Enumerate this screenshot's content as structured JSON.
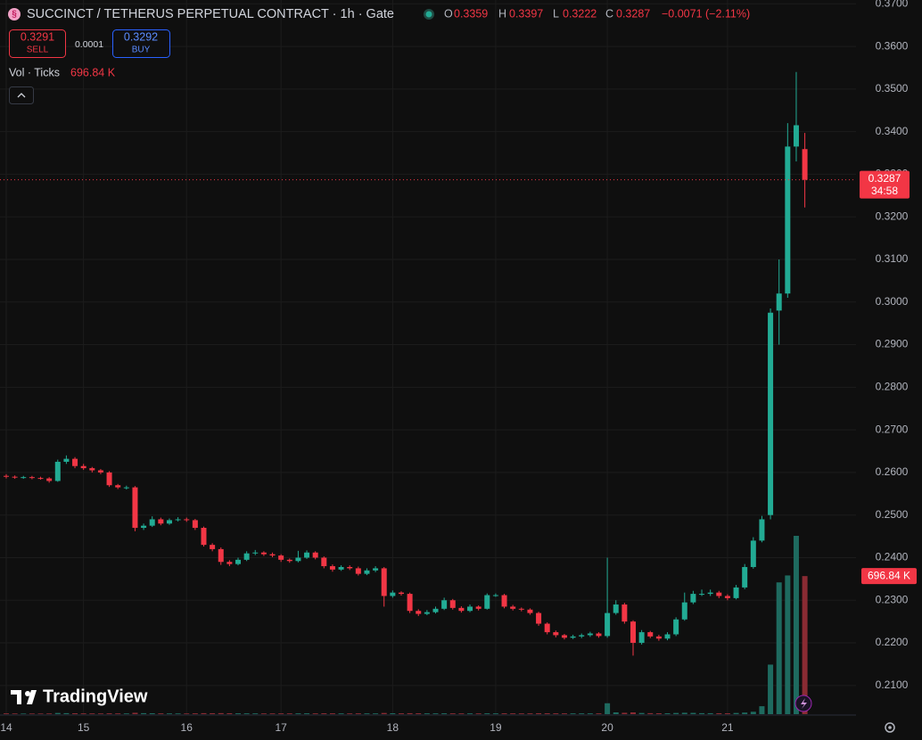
{
  "chart_data": {
    "type": "candlestick",
    "title": "SUCCINCT / TETHERUS PERPETUAL CONTRACT · 1h · Gate",
    "header": {
      "o": "O",
      "h": "H",
      "l": "L",
      "c": "C",
      "change": "−0.0071 (−2.11%)",
      "sell_price": 0.3291,
      "sell": "SELL",
      "spread": 0.0001,
      "buy_price": 0.3292,
      "buy": "BUY",
      "countdown": "34:58",
      "logo": "TradingView"
    },
    "up_color": "#22ab94",
    "down_color": "#f23645",
    "volume_up_color": "#1e6a5f",
    "volume_down_color": "#8a2b33",
    "categories": [
      "14",
      null,
      null,
      null,
      null,
      null,
      null,
      null,
      null,
      "15",
      null,
      null,
      null,
      null,
      null,
      null,
      null,
      null,
      null,
      null,
      null,
      "16",
      null,
      null,
      null,
      null,
      null,
      null,
      null,
      null,
      null,
      null,
      "17",
      null,
      null,
      null,
      null,
      null,
      null,
      null,
      null,
      null,
      null,
      null,
      null,
      "18",
      null,
      null,
      null,
      null,
      null,
      null,
      null,
      null,
      null,
      null,
      null,
      "19",
      null,
      null,
      null,
      null,
      null,
      null,
      null,
      null,
      null,
      null,
      null,
      null,
      "20",
      null,
      null,
      null,
      null,
      null,
      null,
      null,
      null,
      null,
      null,
      null,
      null,
      null,
      "21",
      null,
      null,
      null,
      null,
      null,
      null,
      null,
      null,
      null
    ],
    "open": [
      0.2592,
      0.259,
      0.2588,
      0.2589,
      0.2587,
      0.2586,
      0.258,
      0.2625,
      0.2632,
      0.2615,
      0.261,
      0.2605,
      0.26,
      0.257,
      0.2565,
      0.2565,
      0.247,
      0.2475,
      0.249,
      0.248,
      0.2488,
      0.249,
      0.2488,
      0.247,
      0.243,
      0.242,
      0.239,
      0.2385,
      0.2395,
      0.241,
      0.2412,
      0.2408,
      0.2405,
      0.2395,
      0.2392,
      0.24,
      0.2412,
      0.24,
      0.238,
      0.2372,
      0.2378,
      0.2375,
      0.2362,
      0.237,
      0.2375,
      0.231,
      0.2318,
      0.2315,
      0.2275,
      0.2268,
      0.2272,
      0.228,
      0.23,
      0.2282,
      0.2275,
      0.2285,
      0.228,
      0.2312,
      0.2312,
      0.2285,
      0.228,
      0.2278,
      0.227,
      0.2245,
      0.2225,
      0.2218,
      0.2212,
      0.2215,
      0.2218,
      0.2222,
      0.2216,
      0.227,
      0.229,
      0.225,
      0.22,
      0.2225,
      0.2215,
      0.221,
      0.222,
      0.2255,
      0.2295,
      0.2315,
      0.2315,
      0.2318,
      0.231,
      0.2305,
      0.233,
      0.2378,
      0.244,
      0.25,
      0.298,
      0.302,
      0.3365,
      0.3359
    ],
    "high": [
      0.2596,
      0.2593,
      0.2592,
      0.2592,
      0.259,
      0.2589,
      0.263,
      0.264,
      0.2636,
      0.262,
      0.2613,
      0.2608,
      0.2603,
      0.2573,
      0.2569,
      0.2568,
      0.248,
      0.2497,
      0.2494,
      0.2492,
      0.2495,
      0.2494,
      0.2491,
      0.2473,
      0.2434,
      0.2424,
      0.2394,
      0.24,
      0.2415,
      0.2418,
      0.2415,
      0.2412,
      0.2408,
      0.2398,
      0.2416,
      0.2417,
      0.2415,
      0.2403,
      0.2384,
      0.2382,
      0.2382,
      0.2379,
      0.2375,
      0.238,
      0.2378,
      0.2323,
      0.2321,
      0.2318,
      0.2279,
      0.2277,
      0.2285,
      0.2306,
      0.2303,
      0.2286,
      0.229,
      0.2288,
      0.2316,
      0.2316,
      0.2315,
      0.2289,
      0.2283,
      0.2281,
      0.2273,
      0.2248,
      0.2229,
      0.2221,
      0.2219,
      0.2222,
      0.2226,
      0.2225,
      0.24,
      0.23,
      0.2294,
      0.2253,
      0.223,
      0.2228,
      0.2219,
      0.2225,
      0.226,
      0.2318,
      0.2322,
      0.2325,
      0.2325,
      0.2322,
      0.2314,
      0.2336,
      0.2385,
      0.2448,
      0.2498,
      0.2985,
      0.31,
      0.342,
      0.354,
      0.3397
    ],
    "low": [
      0.2586,
      0.2585,
      0.2585,
      0.2584,
      0.2583,
      0.2576,
      0.2578,
      0.262,
      0.261,
      0.2606,
      0.26,
      0.2596,
      0.2566,
      0.2561,
      0.256,
      0.2462,
      0.2465,
      0.2472,
      0.2476,
      0.2477,
      0.2485,
      0.2484,
      0.2465,
      0.2426,
      0.2415,
      0.2383,
      0.238,
      0.2382,
      0.2392,
      0.2406,
      0.2404,
      0.2401,
      0.239,
      0.2388,
      0.2389,
      0.2397,
      0.2396,
      0.2375,
      0.2367,
      0.2369,
      0.2371,
      0.2358,
      0.2359,
      0.2366,
      0.2285,
      0.2306,
      0.2311,
      0.227,
      0.2263,
      0.2265,
      0.2269,
      0.2277,
      0.2278,
      0.2271,
      0.2272,
      0.2276,
      0.2278,
      0.2308,
      0.2281,
      0.2276,
      0.2274,
      0.2266,
      0.224,
      0.222,
      0.2213,
      0.2208,
      0.2209,
      0.2211,
      0.2214,
      0.2212,
      0.2212,
      0.2266,
      0.2245,
      0.217,
      0.2196,
      0.2211,
      0.2205,
      0.2206,
      0.2216,
      0.2252,
      0.2291,
      0.231,
      0.231,
      0.2305,
      0.23,
      0.2302,
      0.2326,
      0.2374,
      0.2436,
      0.249,
      0.29,
      0.301,
      0.333,
      0.3222
    ],
    "close": [
      0.259,
      0.2588,
      0.2589,
      0.2587,
      0.2586,
      0.258,
      0.2625,
      0.2632,
      0.2615,
      0.261,
      0.2605,
      0.26,
      0.257,
      0.2565,
      0.2565,
      0.247,
      0.2475,
      0.249,
      0.248,
      0.2488,
      0.249,
      0.2488,
      0.247,
      0.243,
      0.242,
      0.239,
      0.2385,
      0.2395,
      0.241,
      0.2412,
      0.2408,
      0.2405,
      0.2395,
      0.2392,
      0.24,
      0.2412,
      0.24,
      0.238,
      0.2372,
      0.2378,
      0.2375,
      0.2362,
      0.237,
      0.2375,
      0.231,
      0.2318,
      0.2315,
      0.2275,
      0.2268,
      0.2272,
      0.228,
      0.23,
      0.2282,
      0.2275,
      0.2285,
      0.228,
      0.2312,
      0.2312,
      0.2285,
      0.228,
      0.2278,
      0.227,
      0.2245,
      0.2225,
      0.2218,
      0.2212,
      0.2215,
      0.2218,
      0.2222,
      0.2216,
      0.227,
      0.229,
      0.225,
      0.22,
      0.2225,
      0.2215,
      0.221,
      0.222,
      0.2255,
      0.2295,
      0.2315,
      0.2315,
      0.2318,
      0.231,
      0.2305,
      0.233,
      0.2378,
      0.244,
      0.249,
      0.2975,
      0.302,
      0.3365,
      0.3415,
      0.3287
    ],
    "volume": {
      "name": "Vol · Ticks",
      "last_label": "696.84 K",
      "values": [
        4000,
        3500,
        3000,
        3200,
        3100,
        3500,
        6000,
        5000,
        4500,
        4000,
        3800,
        3600,
        4200,
        3900,
        3700,
        7000,
        5000,
        4500,
        4000,
        3800,
        3600,
        3500,
        4200,
        5000,
        4800,
        5200,
        4600,
        4300,
        4100,
        3900,
        3800,
        3700,
        4000,
        3900,
        4100,
        4300,
        4000,
        4400,
        4200,
        3900,
        3800,
        4100,
        3900,
        3800,
        6000,
        4500,
        4200,
        4800,
        4400,
        4100,
        4000,
        4300,
        4100,
        3900,
        4000,
        3800,
        4200,
        4000,
        4300,
        4100,
        3900,
        4000,
        4600,
        4400,
        4200,
        4100,
        3900,
        4000,
        4100,
        4000,
        55000,
        9000,
        7000,
        9000,
        6000,
        5000,
        4500,
        4400,
        6000,
        7000,
        6500,
        5000,
        4800,
        4600,
        4400,
        6000,
        8000,
        12000,
        40000,
        250000,
        665000,
        700000,
        900000,
        696840
      ]
    },
    "ylim": [
      0.2018,
      0.3709
    ],
    "yticks": [
      {
        "value": 0.21,
        "label": "0.2100"
      },
      {
        "value": 0.22,
        "label": "0.2200"
      },
      {
        "value": 0.23,
        "label": "0.2300"
      },
      {
        "value": 0.24,
        "label": "0.2400"
      },
      {
        "value": 0.25,
        "label": "0.2500"
      },
      {
        "value": 0.26,
        "label": "0.2600"
      },
      {
        "value": 0.27,
        "label": "0.2700"
      },
      {
        "value": 0.28,
        "label": "0.2800"
      },
      {
        "value": 0.29,
        "label": "0.2900"
      },
      {
        "value": 0.3,
        "label": "0.3000"
      },
      {
        "value": 0.31,
        "label": "0.3100"
      },
      {
        "value": 0.32,
        "label": "0.3200"
      },
      {
        "value": 0.33,
        "label": "0.3300"
      },
      {
        "value": 0.34,
        "label": "0.3400"
      },
      {
        "value": 0.35,
        "label": "0.3500"
      },
      {
        "value": 0.36,
        "label": "0.3600"
      },
      {
        "value": 0.37,
        "label": "0.3700"
      }
    ],
    "grid": true
  }
}
